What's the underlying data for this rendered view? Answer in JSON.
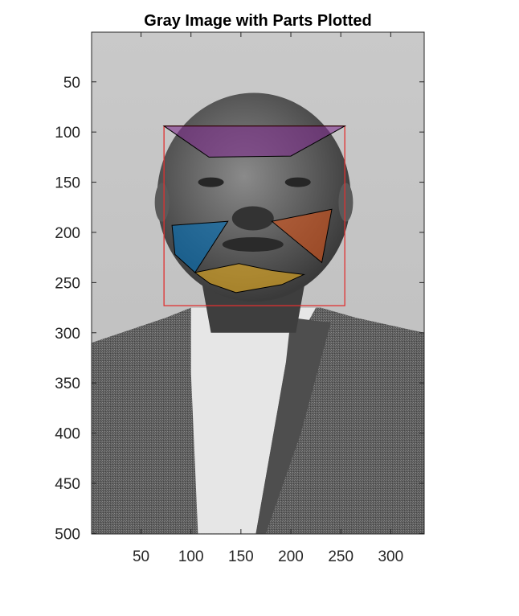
{
  "chart_data": {
    "type": "image",
    "title": "Gray Image with Parts Plotted",
    "xlim": [
      0.5,
      333.5
    ],
    "ylim": [
      0.5,
      500.5
    ],
    "y_reversed": true,
    "x_ticks": [
      50,
      100,
      150,
      200,
      250,
      300
    ],
    "y_ticks": [
      50,
      100,
      150,
      200,
      250,
      300,
      350,
      400,
      450,
      500
    ],
    "x_tick_labels": [
      "50",
      "100",
      "150",
      "200",
      "250",
      "300"
    ],
    "y_tick_labels": [
      "50",
      "100",
      "150",
      "200",
      "250",
      "300",
      "350",
      "400",
      "450",
      "500"
    ],
    "colormap": "gray",
    "face_box": {
      "x": 73,
      "y": 94,
      "width": 181,
      "height": 179,
      "color": "#e03030"
    },
    "parts": [
      {
        "name": "forehead",
        "color": "#7e2f8e",
        "vertices": [
          [
            73,
            94
          ],
          [
            254,
            94
          ],
          [
            200,
            124
          ],
          [
            118,
            125
          ]
        ]
      },
      {
        "name": "left-cheek",
        "color": "#0072bd",
        "vertices": [
          [
            81,
            193
          ],
          [
            137,
            189
          ],
          [
            104,
            240
          ],
          [
            84,
            222
          ]
        ]
      },
      {
        "name": "right-cheek",
        "color": "#d95319",
        "vertices": [
          [
            181,
            189
          ],
          [
            241,
            177
          ],
          [
            231,
            230
          ]
        ]
      },
      {
        "name": "chin",
        "color": "#edb120",
        "vertices": [
          [
            104,
            240
          ],
          [
            148,
            231
          ],
          [
            181,
            238
          ],
          [
            213,
            242
          ],
          [
            191,
            252
          ],
          [
            145,
            260
          ],
          [
            119,
            251
          ]
        ]
      }
    ],
    "grid": false,
    "legend": "none"
  }
}
